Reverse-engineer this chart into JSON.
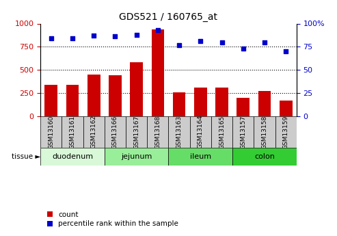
{
  "title": "GDS521 / 160765_at",
  "samples": [
    "GSM13160",
    "GSM13161",
    "GSM13162",
    "GSM13166",
    "GSM13167",
    "GSM13168",
    "GSM13163",
    "GSM13164",
    "GSM13165",
    "GSM13157",
    "GSM13158",
    "GSM13159"
  ],
  "counts": [
    335,
    335,
    450,
    445,
    580,
    940,
    255,
    310,
    305,
    200,
    275,
    170
  ],
  "percentiles": [
    84,
    84,
    87,
    86,
    88,
    93,
    77,
    81,
    80,
    73,
    80,
    70
  ],
  "tissues": [
    {
      "label": "duodenum",
      "start": 0,
      "end": 3,
      "color": "#d8f8d8"
    },
    {
      "label": "jejunum",
      "start": 3,
      "end": 6,
      "color": "#99ee99"
    },
    {
      "label": "ileum",
      "start": 6,
      "end": 9,
      "color": "#66dd66"
    },
    {
      "label": "colon",
      "start": 9,
      "end": 12,
      "color": "#33cc33"
    }
  ],
  "bar_color": "#cc0000",
  "dot_color": "#0000cc",
  "left_ylim": [
    0,
    1000
  ],
  "right_ylim": [
    0,
    100
  ],
  "left_yticks": [
    0,
    250,
    500,
    750,
    1000
  ],
  "right_yticks": [
    0,
    25,
    50,
    75,
    100
  ],
  "grid_values": [
    250,
    500,
    750
  ],
  "bar_width": 0.6,
  "sample_box_color": "#cccccc",
  "tissue_arrow_label": "tissue",
  "legend_items": [
    {
      "color": "#cc0000",
      "label": "count"
    },
    {
      "color": "#0000cc",
      "label": "percentile rank within the sample"
    }
  ]
}
